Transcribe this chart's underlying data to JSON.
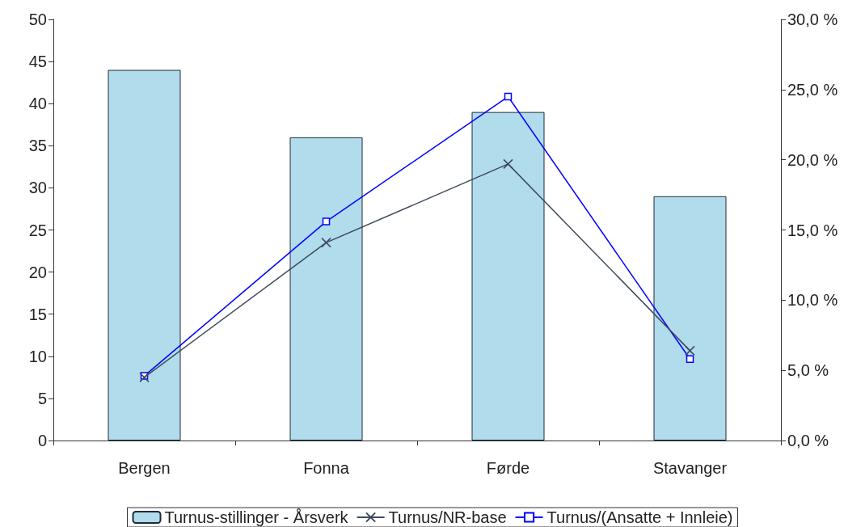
{
  "chart_data": {
    "type": "bar",
    "categories": [
      "Bergen",
      "Fonna",
      "Førde",
      "Stavanger"
    ],
    "series": [
      {
        "name": "Turnus-stillinger - Årsverk",
        "color": "#b0dcec",
        "values": [
          44,
          36,
          39,
          29
        ]
      },
      {
        "name": "Turnus/NR-base",
        "type": "line",
        "axis": "y2",
        "color": "#3d4a5c",
        "marker": "cross",
        "values": [
          4.5,
          14.1,
          19.7,
          6.4
        ]
      },
      {
        "name": "Turnus/(Ansatte + Innleie)",
        "type": "line",
        "axis": "y2",
        "color": "#0000ff",
        "marker": "square",
        "values": [
          4.6,
          15.6,
          24.5,
          5.8
        ]
      }
    ],
    "ylim": [
      0,
      50
    ],
    "yticks": [
      0,
      5,
      10,
      15,
      20,
      25,
      30,
      35,
      40,
      45,
      50
    ],
    "y2lim": [
      0,
      30
    ],
    "y2ticks": [
      {
        "value": 0,
        "label": "0,0 %"
      },
      {
        "value": 5,
        "label": "5,0 %"
      },
      {
        "value": 10,
        "label": "10,0 %"
      },
      {
        "value": 15,
        "label": "15,0 %"
      },
      {
        "value": 20,
        "label": "20,0 %"
      },
      {
        "value": 25,
        "label": "25,0 %"
      },
      {
        "value": 30,
        "label": "30,0 %"
      }
    ],
    "grid": false,
    "legend": "bottom",
    "line_style": "solid"
  }
}
